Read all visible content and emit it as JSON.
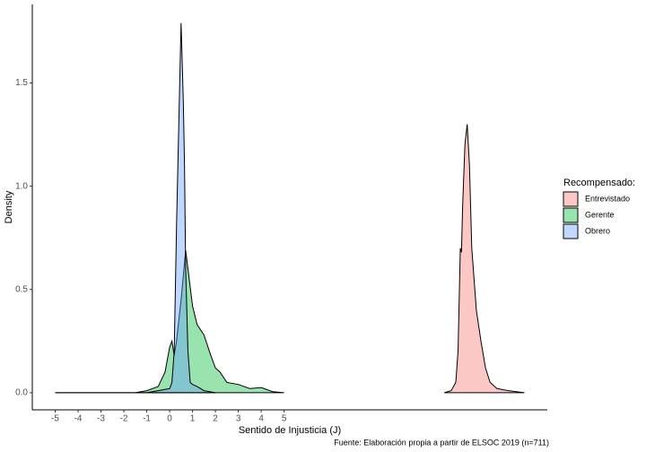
{
  "chart_data": {
    "type": "area",
    "x_label": "Sentido de Injusticia (J)",
    "y_label": "Density",
    "caption": "Fuente: Elaboración propia  a partir de ELSOC 2019 (n=711)",
    "legend_title": "Recompensado:",
    "legend": "right",
    "opacity": 0.4,
    "xlim": [
      -6.0,
      16.5
    ],
    "ylim": [
      -0.083,
      1.88
    ],
    "xticks": [
      -5,
      -4,
      -3,
      -2,
      -1,
      0,
      1,
      2,
      3,
      4,
      5
    ],
    "yticks": [
      {
        "value": 0,
        "label": "0.0"
      },
      {
        "value": 0.5,
        "label": "0.5"
      },
      {
        "value": 1,
        "label": "1.0"
      },
      {
        "value": 1.5,
        "label": "1.5"
      }
    ],
    "series": [
      {
        "name": "Entrevistado",
        "color": "#F8766D",
        "x": [
          12.0,
          12.3,
          12.5,
          12.6,
          12.7,
          12.75,
          12.8,
          12.9,
          13.0,
          13.1,
          13.2,
          13.4,
          13.6,
          13.8,
          14.0,
          14.3,
          14.8,
          15.5
        ],
        "values": [
          0,
          0.01,
          0.05,
          0.2,
          0.7,
          0.68,
          0.9,
          1.2,
          1.3,
          1.1,
          0.7,
          0.4,
          0.25,
          0.12,
          0.05,
          0.02,
          0.01,
          0
        ]
      },
      {
        "name": "Gerente",
        "color": "#00BA38",
        "x": [
          -5,
          -1.5,
          -1,
          -0.5,
          -0.2,
          0,
          0.1,
          0.2,
          0.3,
          0.5,
          0.7,
          0.8,
          1.0,
          1.2,
          1.5,
          1.8,
          2.0,
          2.2,
          2.5,
          3.0,
          3.5,
          4.0,
          4.5,
          5
        ],
        "values": [
          0,
          0,
          0.01,
          0.03,
          0.1,
          0.22,
          0.25,
          0.18,
          0.25,
          0.45,
          0.69,
          0.6,
          0.42,
          0.33,
          0.28,
          0.18,
          0.12,
          0.1,
          0.05,
          0.04,
          0.02,
          0.025,
          0.005,
          0
        ]
      },
      {
        "name": "Obrero",
        "color": "#619CFF",
        "x": [
          -5,
          -1,
          0,
          0.1,
          0.2,
          0.3,
          0.4,
          0.5,
          0.55,
          0.6,
          0.65,
          0.7,
          0.8,
          0.9,
          1.0,
          1.2,
          1.5,
          2.0
        ],
        "values": [
          0,
          0,
          0.02,
          0.05,
          0.2,
          0.8,
          1.3,
          1.79,
          1.6,
          1.4,
          1.1,
          0.6,
          0.2,
          0.05,
          0.04,
          0.03,
          0.01,
          0
        ]
      }
    ]
  }
}
